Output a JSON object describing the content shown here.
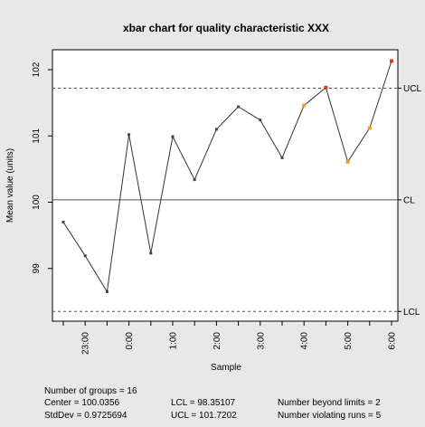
{
  "chart_data": {
    "type": "line",
    "title": "xbar chart for quality characteristic XXX",
    "xlabel": "Sample",
    "ylabel": "Mean value (units)",
    "ylim": [
      98.35,
      102.2
    ],
    "yticks": [
      99,
      100,
      101,
      102
    ],
    "xticks": [
      "23:00",
      "0:00",
      "1:00",
      "2:00",
      "3:00",
      "4:00",
      "5:00",
      "6:00"
    ],
    "x": [
      "22:30",
      "23:00",
      "23:30",
      "0:00",
      "0:30",
      "1:00",
      "1:30",
      "2:00",
      "2:30",
      "3:00",
      "3:30",
      "4:00",
      "4:30",
      "5:00",
      "5:30",
      "6:00"
    ],
    "values": [
      99.7,
      99.19,
      98.65,
      101.02,
      99.23,
      100.99,
      100.34,
      101.1,
      101.44,
      101.24,
      100.67,
      101.46,
      101.73,
      100.61,
      101.12,
      102.13
    ],
    "point_status": [
      "normal",
      "normal",
      "normal",
      "normal",
      "normal",
      "normal",
      "normal",
      "normal",
      "normal",
      "normal",
      "normal",
      "violating",
      "beyond",
      "violating",
      "violating",
      "beyond"
    ],
    "limits": [
      {
        "label": "UCL",
        "value": 101.7202,
        "style": "dashed"
      },
      {
        "label": "CL",
        "value": 100.0356,
        "style": "solid"
      },
      {
        "label": "LCL",
        "value": 98.35107,
        "style": "dashed"
      }
    ],
    "colors": {
      "line": "#333333",
      "point_normal": "#444444",
      "point_violating": "#f59a23",
      "point_beyond": "#e03a1e",
      "background": "#e8e8e8",
      "plot_bg": "#ffffff"
    }
  },
  "stats": {
    "groups": "Number of groups = 16",
    "center": "Center = 100.0356",
    "stddev": "StdDev = 0.9725694",
    "lcl": "LCL = 98.35107",
    "ucl": "UCL = 101.7202",
    "beyond": "Number beyond limits = 2",
    "violating": "Number violating runs = 5"
  }
}
